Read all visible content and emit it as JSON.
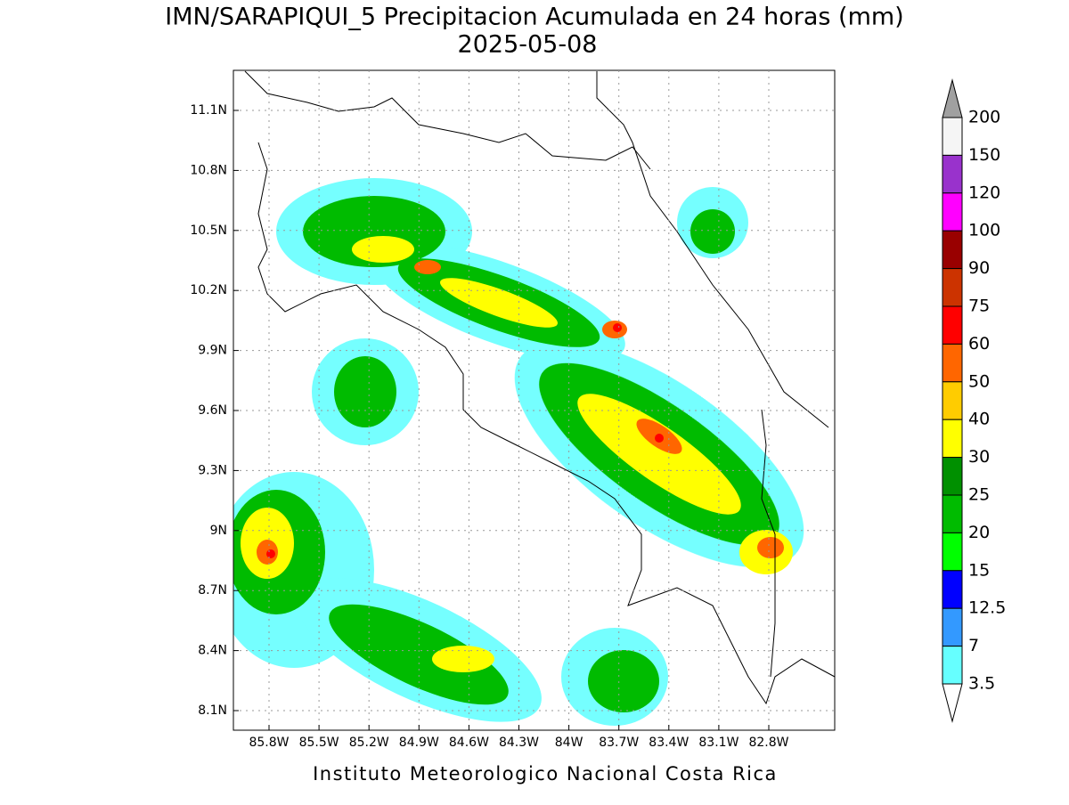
{
  "title": "IMN/SARAPIQUI_5 Precipitacion Acumulada en 24 horas (mm)",
  "date": "2025-05-08",
  "map": {
    "lat_labels": [
      "11.1N",
      "10.8N",
      "10.5N",
      "10.2N",
      "9.9N",
      "9.6N",
      "9.3N",
      "9N",
      "8.7N",
      "8.4N",
      "8.1N"
    ],
    "lon_labels": [
      "85.8W",
      "85.5W",
      "85.2W",
      "84.9W",
      "84.6W",
      "84.3W",
      "84W",
      "83.7W",
      "83.4W",
      "83.1W",
      "82.8W"
    ]
  },
  "colorbar": {
    "labels": [
      "200",
      "150",
      "120",
      "100",
      "90",
      "75",
      "60",
      "50",
      "40",
      "30",
      "25",
      "20",
      "15",
      "12.5",
      "7",
      "3.5"
    ],
    "colors": [
      "#f5f5f5",
      "#9932cc",
      "#ff00ff",
      "#990000",
      "#cc3300",
      "#ff0000",
      "#ff6600",
      "#ffcc00",
      "#ffff00",
      "#009000",
      "#00bb00",
      "#00ff00",
      "#0000ff",
      "#3399ff",
      "#66ffff"
    ],
    "over_color": "#a0a0a0",
    "under_color": "#ffffff"
  },
  "footer": "Instituto Meteorologico Nacional Costa Rica"
}
